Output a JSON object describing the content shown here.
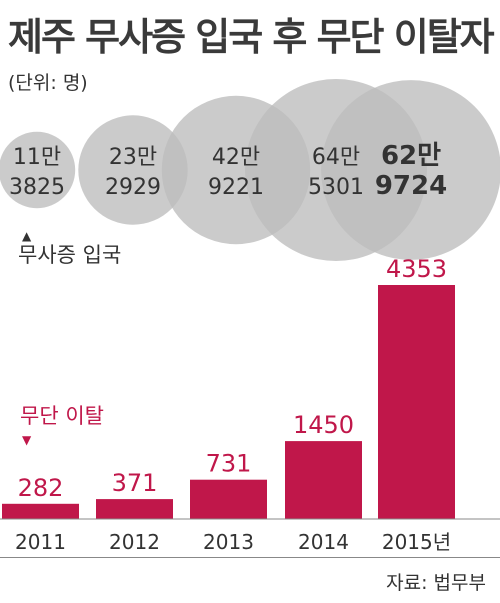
{
  "title": "제주 무사증 입국 후 무단 이탈자",
  "unit": "(단위: 명)",
  "source": "자료: 법무부",
  "colors": {
    "bar": "#c0174a",
    "bubble": "#bdbdbd",
    "bubble_opacity": 0.78,
    "text": "#333333"
  },
  "chart_data": [
    {
      "type": "bubble",
      "series_label": "무사증 입국",
      "marker": "▲",
      "values": [
        113825,
        232929,
        429221,
        645301,
        629724
      ],
      "labels": [
        {
          "line1": "11만",
          "line2": "3825"
        },
        {
          "line1": "23만",
          "line2": "2929"
        },
        {
          "line1": "42만",
          "line2": "9221"
        },
        {
          "line1": "64만",
          "line2": "5301"
        },
        {
          "line1": "62만",
          "line2": "9724"
        }
      ]
    },
    {
      "type": "bar",
      "series_label": "무단 이탈",
      "marker": "▼",
      "categories": [
        "2011",
        "2012",
        "2013",
        "2014",
        "2015년"
      ],
      "values": [
        282,
        371,
        731,
        1450,
        4353
      ]
    }
  ]
}
